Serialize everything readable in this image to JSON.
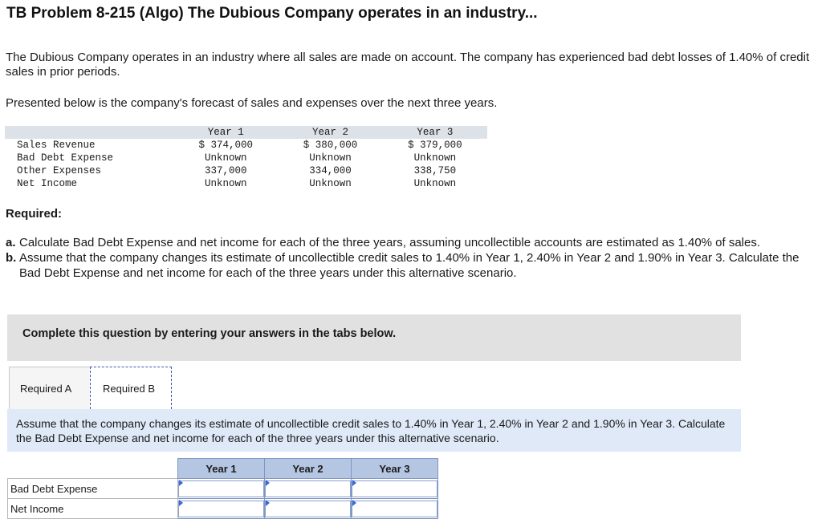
{
  "title": "TB Problem 8-215 (Algo) The Dubious Company operates in an industry...",
  "intro": "The Dubious Company operates in an industry where all sales are made on account. The company has experienced bad debt losses of 1.40% of credit sales in prior periods.",
  "presented": "Presented below is the company's forecast of sales and expenses over the next three years.",
  "forecast": {
    "headers": [
      "Year 1",
      "Year 2",
      "Year 3"
    ],
    "rows": [
      {
        "label": "Sales Revenue",
        "values": [
          "$ 374,000",
          "$ 380,000",
          "$ 379,000"
        ]
      },
      {
        "label": "Bad Debt Expense",
        "values": [
          "Unknown",
          "Unknown",
          "Unknown"
        ]
      },
      {
        "label": "Other Expenses",
        "values": [
          "337,000",
          "334,000",
          "338,750"
        ]
      },
      {
        "label": "Net Income",
        "values": [
          "Unknown",
          "Unknown",
          "Unknown"
        ]
      }
    ]
  },
  "required_label": "Required:",
  "requirements": [
    {
      "letter": "a.",
      "text": "Calculate Bad Debt Expense and net income for each of the three years, assuming uncollectible accounts are estimated as 1.40% of sales."
    },
    {
      "letter": "b.",
      "text": "Assume that the company changes its estimate of uncollectible credit sales to 1.40% in Year 1, 2.40% in Year 2 and 1.90% in Year 3. Calculate the Bad Debt Expense and net income for each of the three years under this alternative scenario."
    }
  ],
  "instructions": "Complete this question by entering your answers in the tabs below.",
  "tabs": [
    {
      "label": "Required A",
      "active": false
    },
    {
      "label": "Required B",
      "active": true
    }
  ],
  "prompt": "Assume that the company changes its estimate of uncollectible credit sales to 1.40% in Year 1, 2.40% in Year 2 and 1.90% in Year 3. Calculate the Bad Debt Expense and net income for each of the three years under this alternative scenario.",
  "answer_table": {
    "headers": [
      "Year 1",
      "Year 2",
      "Year 3"
    ],
    "rows": [
      {
        "label": "Bad Debt Expense",
        "values": [
          "",
          "",
          ""
        ]
      },
      {
        "label": "Net Income",
        "values": [
          "",
          "",
          ""
        ]
      }
    ]
  },
  "colors": {
    "instructions_bg": "#e1e1e1",
    "prompt_bg": "#dfe9f7",
    "answer_header_bg": "#b5c6e3",
    "forecast_header_bg": "#dde1e8"
  }
}
